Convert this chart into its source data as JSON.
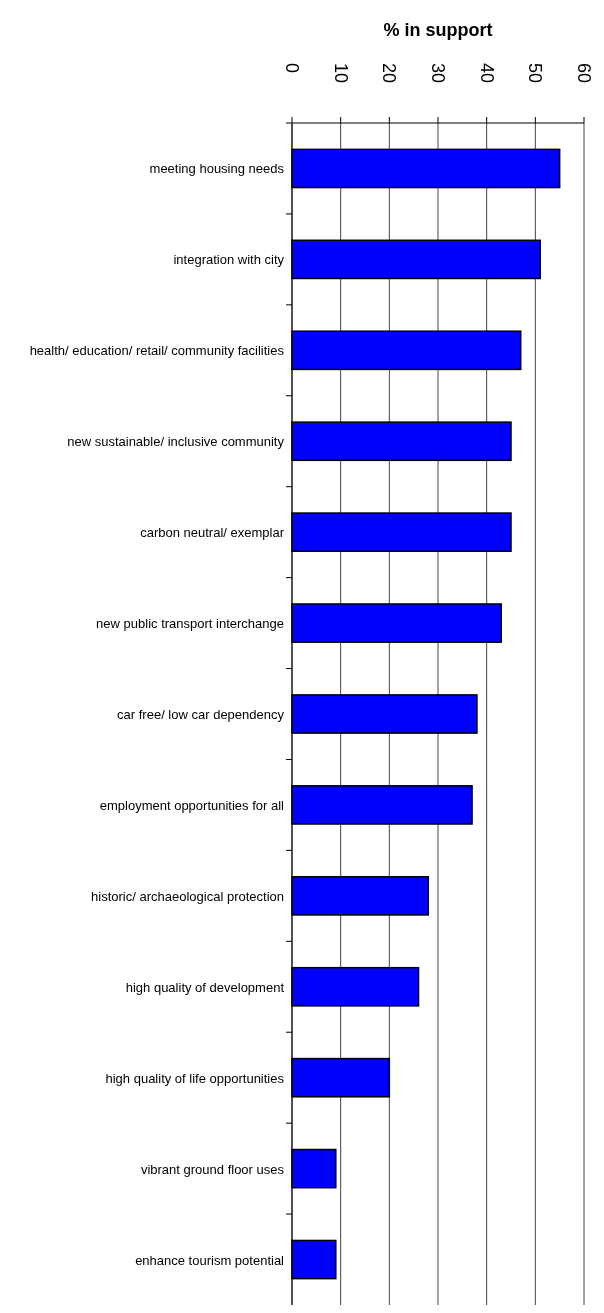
{
  "chart_data": {
    "type": "bar",
    "orientation": "horizontal",
    "title": "% in support",
    "categories": [
      "meeting housing needs",
      "integration with city",
      "health/ education/ retail/ community facilities",
      "new sustainable/ inclusive community",
      "carbon neutral/ exemplar",
      "new public transport interchange",
      "car free/ low car dependency",
      "employment opportunities for all",
      "historic/ archaeological protection",
      "high quality of development",
      "high quality of life opportunities",
      "vibrant ground floor uses",
      "enhance tourism potential"
    ],
    "values": [
      55,
      51,
      47,
      45,
      45,
      43,
      38,
      37,
      28,
      26,
      20,
      9,
      9
    ],
    "color": "#0000ff",
    "xlim": [
      0,
      60
    ],
    "xticks": [
      0,
      10,
      20,
      30,
      40,
      50,
      60
    ],
    "grid": "x"
  }
}
